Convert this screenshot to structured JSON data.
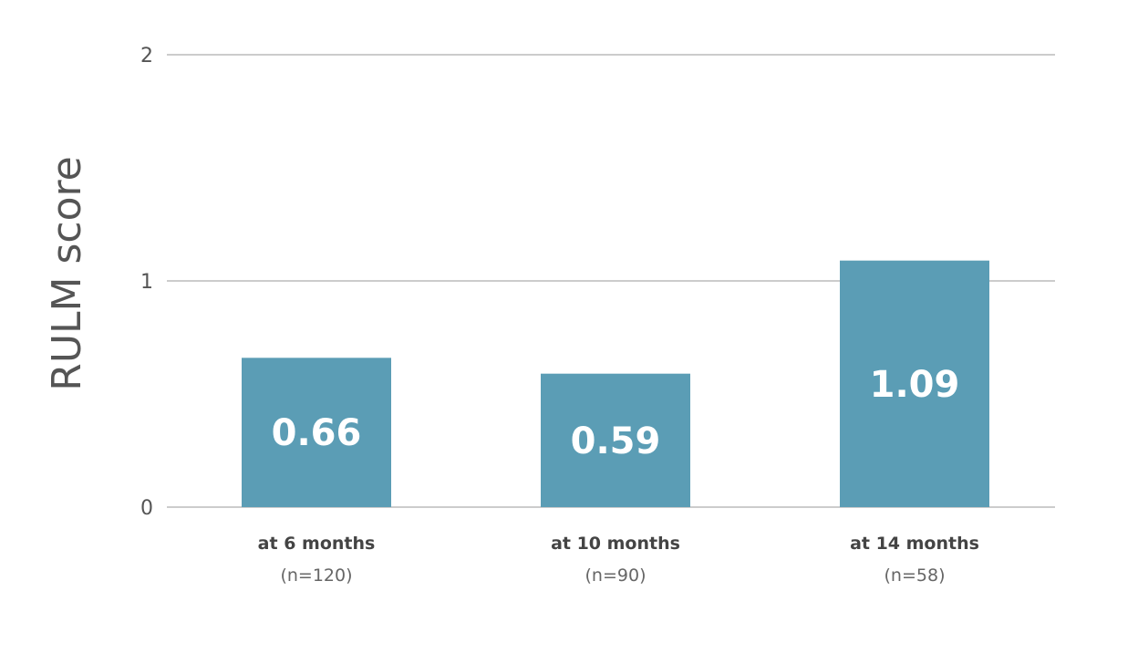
{
  "chart_data": {
    "type": "bar",
    "ylabel": "RULM score",
    "ylim": [
      0,
      2
    ],
    "yticks": [
      0,
      1,
      2
    ],
    "grid": true,
    "bar_color": "#5b9db5",
    "categories": [
      "at 6 months",
      "at 10 months",
      "at 14 months"
    ],
    "category_sublabels": [
      "(n=120)",
      "(n=90)",
      "(n=58)"
    ],
    "values": [
      0.66,
      0.59,
      1.09
    ],
    "data_labels": [
      "0.66",
      "0.59",
      "1.09"
    ]
  }
}
